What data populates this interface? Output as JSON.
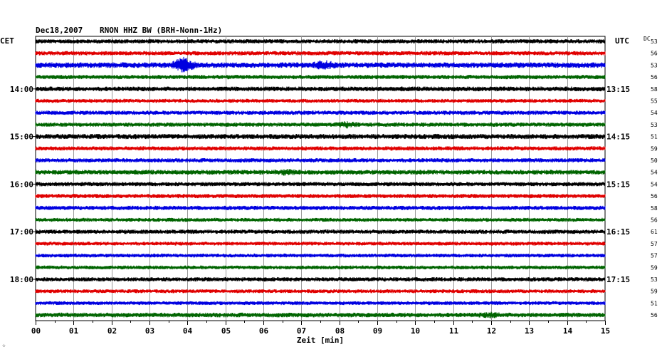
{
  "header": {
    "date": "Dec18,2007",
    "station": "RNON HHZ BW (BRH-Nonn-1Hz)"
  },
  "left_zone_label": "CET",
  "right_zone_label": "UTC",
  "dc_label": "DC",
  "corner_mark": "☆",
  "chart_data": {
    "type": "line",
    "title": "Dec18,2007   RNON HHZ BW (BRH-Nonn-1Hz)",
    "xlabel": "Zeit [min]",
    "ylabel": "",
    "xlim": [
      0,
      15
    ],
    "x_ticks": [
      "00",
      "01",
      "02",
      "03",
      "04",
      "05",
      "06",
      "07",
      "08",
      "09",
      "10",
      "11",
      "12",
      "13",
      "14",
      "15"
    ],
    "grid": true,
    "trace_count": 24,
    "trace_colors": [
      "#000000",
      "#e00000",
      "#0000e0",
      "#006400"
    ],
    "left_time_labels": [
      {
        "trace": 4,
        "label": "14:00"
      },
      {
        "trace": 8,
        "label": "15:00"
      },
      {
        "trace": 12,
        "label": "16:00"
      },
      {
        "trace": 16,
        "label": "17:00"
      },
      {
        "trace": 20,
        "label": "18:00"
      }
    ],
    "right_time_labels": [
      {
        "trace": 4,
        "label": "13:15"
      },
      {
        "trace": 8,
        "label": "14:15"
      },
      {
        "trace": 12,
        "label": "15:15"
      },
      {
        "trace": 16,
        "label": "16:15"
      },
      {
        "trace": 20,
        "label": "17:15"
      }
    ],
    "dc_values": [
      "53",
      "56",
      "53",
      "56",
      "58",
      "55",
      "54",
      "53",
      "51",
      "59",
      "50",
      "54",
      "54",
      "56",
      "58",
      "56",
      "61",
      "57",
      "57",
      "59",
      "53",
      "59",
      "51",
      "56"
    ],
    "amplitude_scale": [
      1.0,
      1.0,
      1.3,
      1.0,
      1.1,
      0.9,
      1.0,
      1.0,
      1.2,
      1.0,
      1.0,
      1.1,
      1.0,
      1.0,
      1.0,
      0.9,
      1.0,
      0.9,
      0.9,
      0.9,
      1.0,
      0.9,
      0.9,
      1.1
    ],
    "events": [
      {
        "trace": 2,
        "minute": 3.9,
        "amplitude": 3.2
      },
      {
        "trace": 2,
        "minute": 7.6,
        "amplitude": 2.0
      },
      {
        "trace": 7,
        "minute": 8.2,
        "amplitude": 1.8
      },
      {
        "trace": 11,
        "minute": 6.6,
        "amplitude": 1.6
      },
      {
        "trace": 23,
        "minute": 12.0,
        "amplitude": 1.5
      }
    ]
  }
}
